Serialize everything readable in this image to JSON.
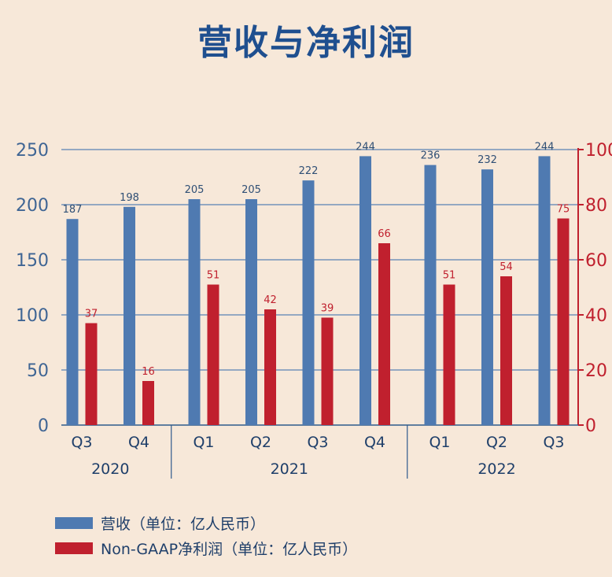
{
  "chart_data": {
    "type": "bar",
    "title": "营收与净利润",
    "categories": [
      "Q3",
      "Q4",
      "Q1",
      "Q2",
      "Q3",
      "Q4",
      "Q1",
      "Q2",
      "Q3"
    ],
    "year_groups": [
      {
        "label": "2020",
        "count": 2
      },
      {
        "label": "2021",
        "count": 4
      },
      {
        "label": "2022",
        "count": 3
      }
    ],
    "series": [
      {
        "name": "营收（单位：亿人民币）",
        "axis": "left",
        "color": "#4f7ab1",
        "values": [
          187,
          198,
          205,
          205,
          222,
          244,
          236,
          232,
          244
        ]
      },
      {
        "name": "Non-GAAP净利润（单位：亿人民币）",
        "axis": "right",
        "color": "#c0202e",
        "values": [
          37,
          16,
          51,
          42,
          39,
          66,
          51,
          54,
          75
        ]
      }
    ],
    "y_left": {
      "ticks": [
        0,
        50,
        100,
        150,
        200,
        250
      ],
      "range": [
        0,
        250
      ],
      "color": "#3f6594"
    },
    "y_right": {
      "ticks": [
        0,
        20,
        40,
        60,
        80,
        100
      ],
      "range": [
        0,
        100
      ],
      "color": "#c0202e"
    },
    "grid": true,
    "legend_position": "bottom-left"
  }
}
